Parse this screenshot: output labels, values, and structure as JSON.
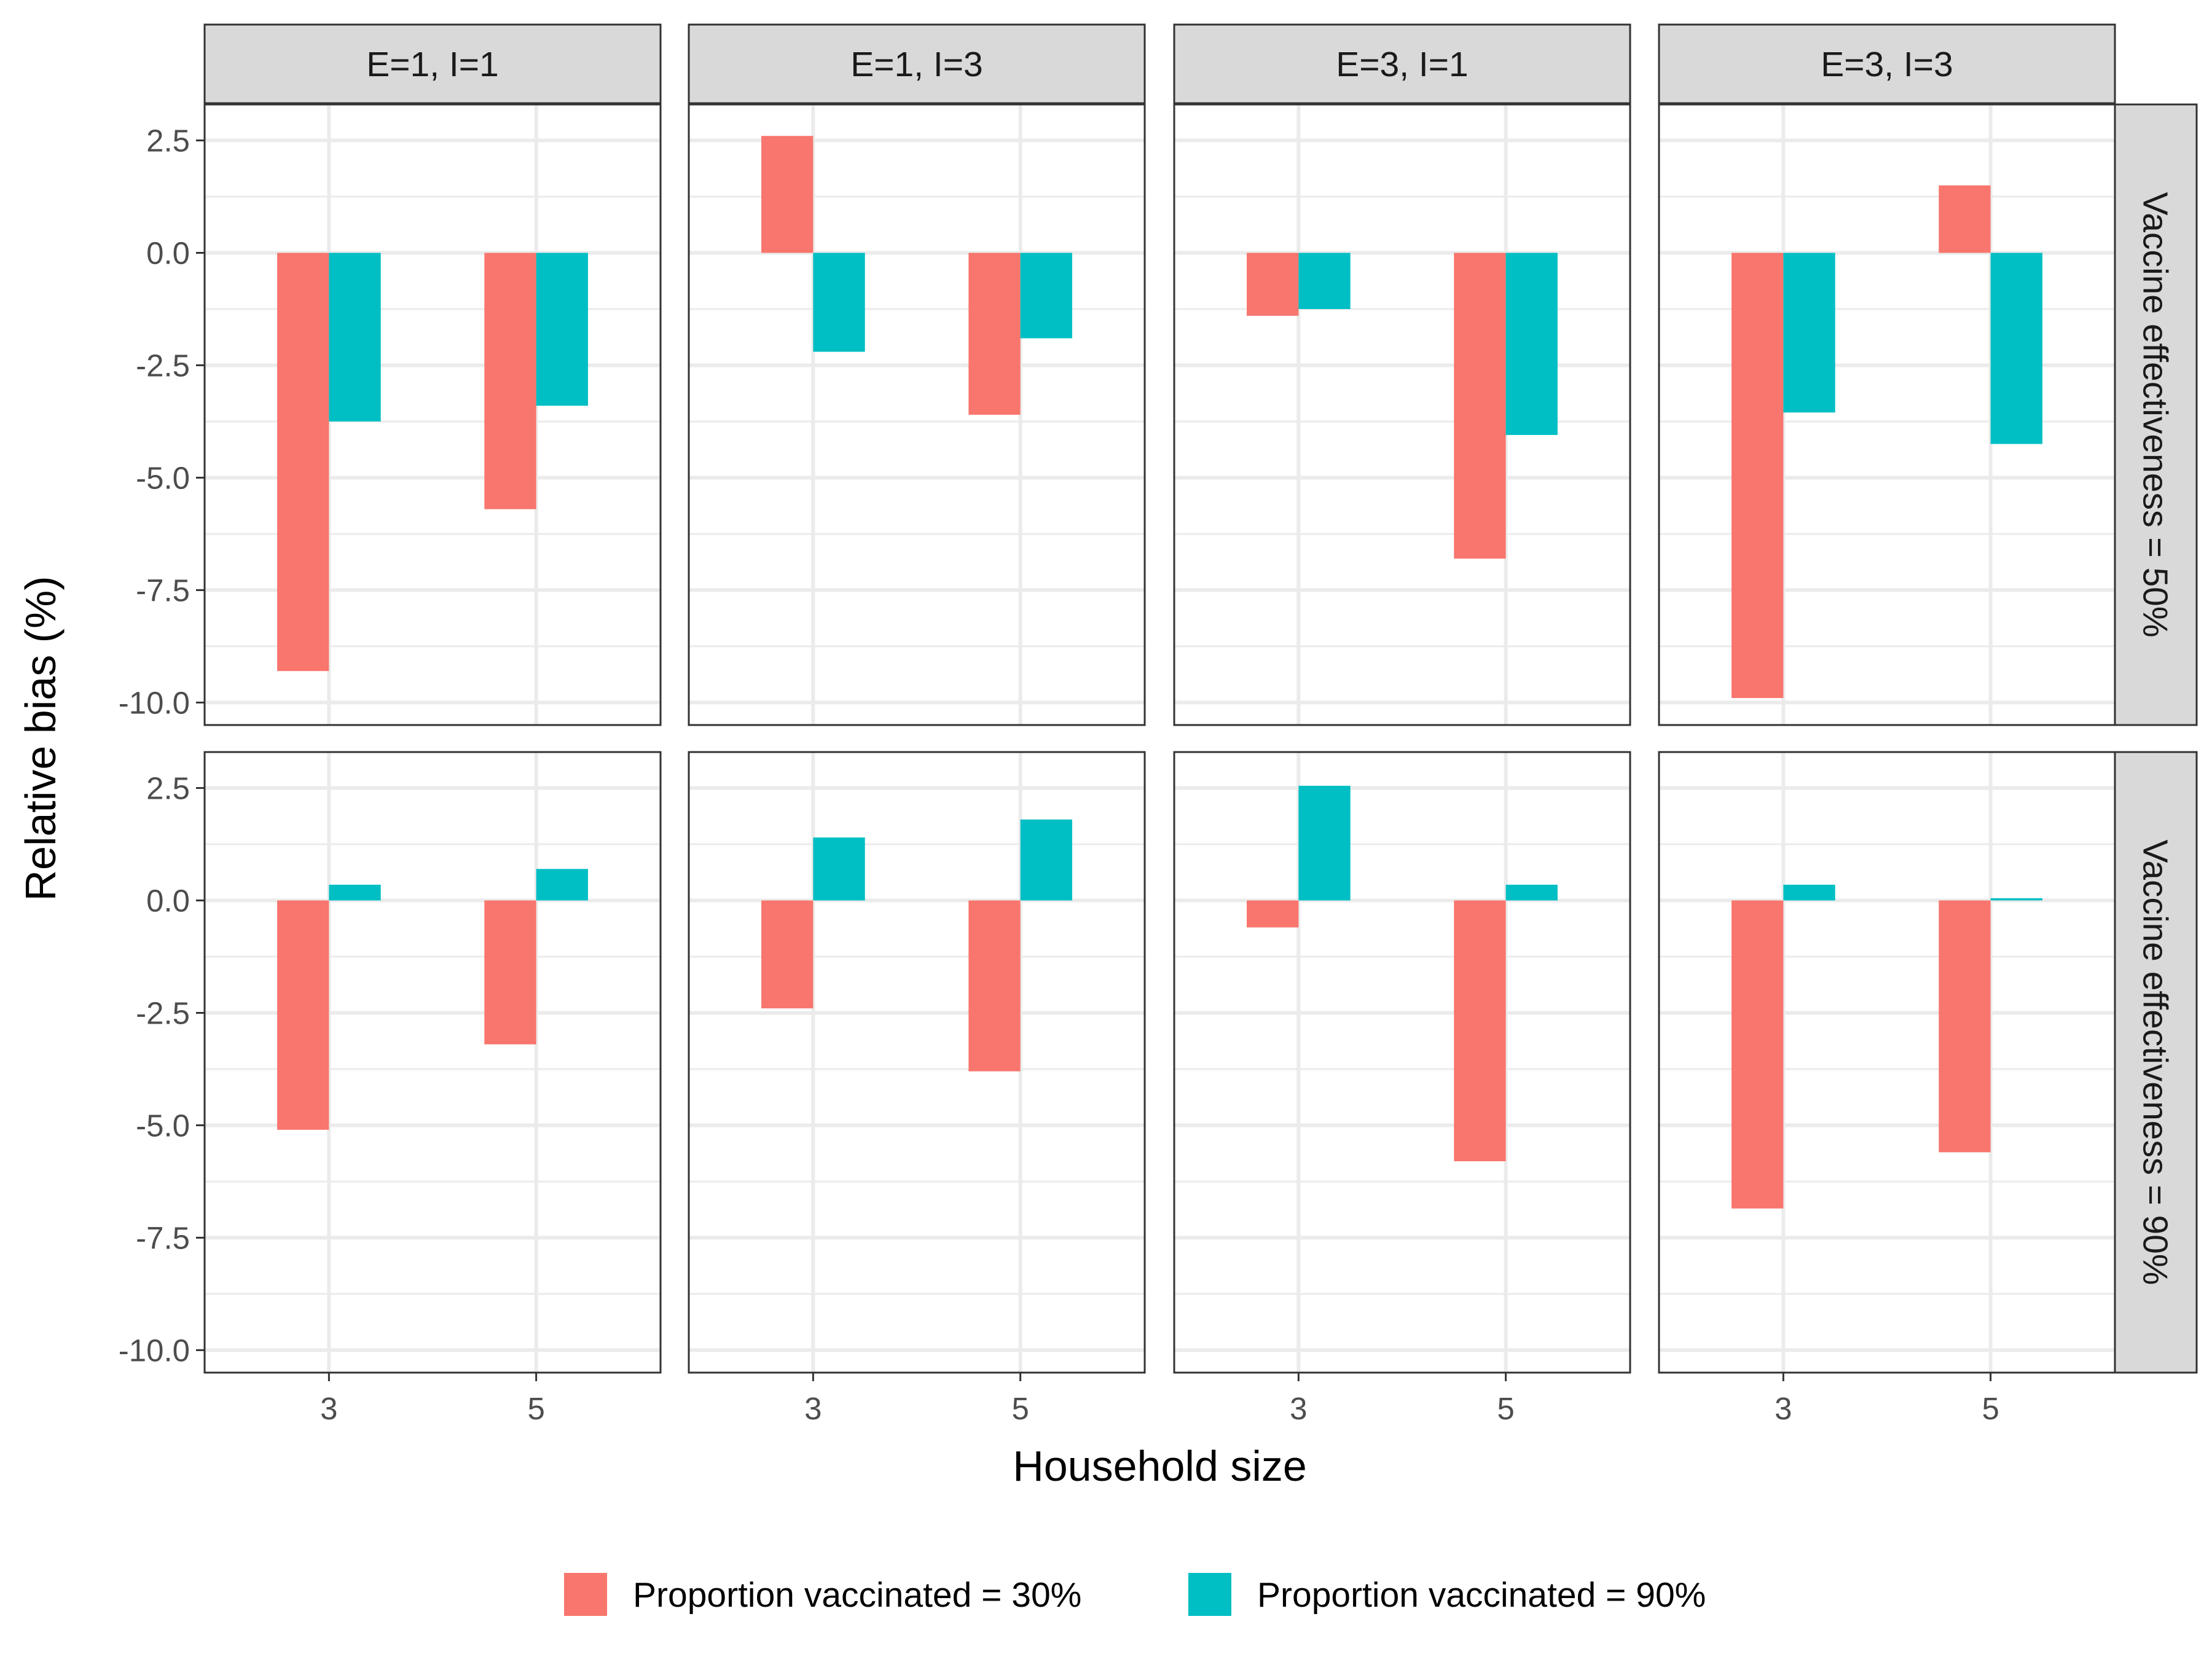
{
  "chart_data": {
    "type": "bar",
    "layout": "facet-grid",
    "ylabel": "Relative bias (%)",
    "xlabel": "Household size",
    "categories": [
      "3",
      "5"
    ],
    "ylim": [
      -10.5,
      3.3
    ],
    "yticks": [
      2.5,
      0.0,
      -2.5,
      -5.0,
      -7.5,
      -10.0
    ],
    "ytick_labels": [
      "2.5",
      "0.0",
      "-2.5",
      "-5.0",
      "-7.5",
      "-10.0"
    ],
    "column_facets": [
      "E=1, I=1",
      "E=1, I=3",
      "E=3, I=1",
      "E=3, I=3"
    ],
    "row_facets": [
      "Vaccine effectiveness = 50%",
      "Vaccine effectiveness = 90%"
    ],
    "legend_position": "bottom",
    "grid": true,
    "series": [
      {
        "name": "Proportion vaccinated = 30%",
        "color": "#F8766D"
      },
      {
        "name": "Proportion vaccinated = 90%",
        "color": "#00BFC4"
      }
    ],
    "panels": [
      {
        "row": 0,
        "col": 0,
        "values": [
          [
            -9.3,
            -5.7
          ],
          [
            -3.75,
            -3.4
          ]
        ]
      },
      {
        "row": 0,
        "col": 1,
        "values": [
          [
            2.6,
            -3.6
          ],
          [
            -2.2,
            -1.9
          ]
        ]
      },
      {
        "row": 0,
        "col": 2,
        "values": [
          [
            -1.4,
            -6.8
          ],
          [
            -1.25,
            -4.05
          ]
        ]
      },
      {
        "row": 0,
        "col": 3,
        "values": [
          [
            -9.9,
            1.5
          ],
          [
            -3.55,
            -4.25
          ]
        ]
      },
      {
        "row": 1,
        "col": 0,
        "values": [
          [
            -5.1,
            -3.2
          ],
          [
            0.35,
            0.7
          ]
        ]
      },
      {
        "row": 1,
        "col": 1,
        "values": [
          [
            -2.4,
            -3.8
          ],
          [
            1.4,
            1.8
          ]
        ]
      },
      {
        "row": 1,
        "col": 2,
        "values": [
          [
            -0.6,
            -5.8
          ],
          [
            2.55,
            0.35
          ]
        ]
      },
      {
        "row": 1,
        "col": 3,
        "values": [
          [
            -6.85,
            -5.6
          ],
          [
            0.35,
            0.05
          ]
        ]
      }
    ]
  }
}
